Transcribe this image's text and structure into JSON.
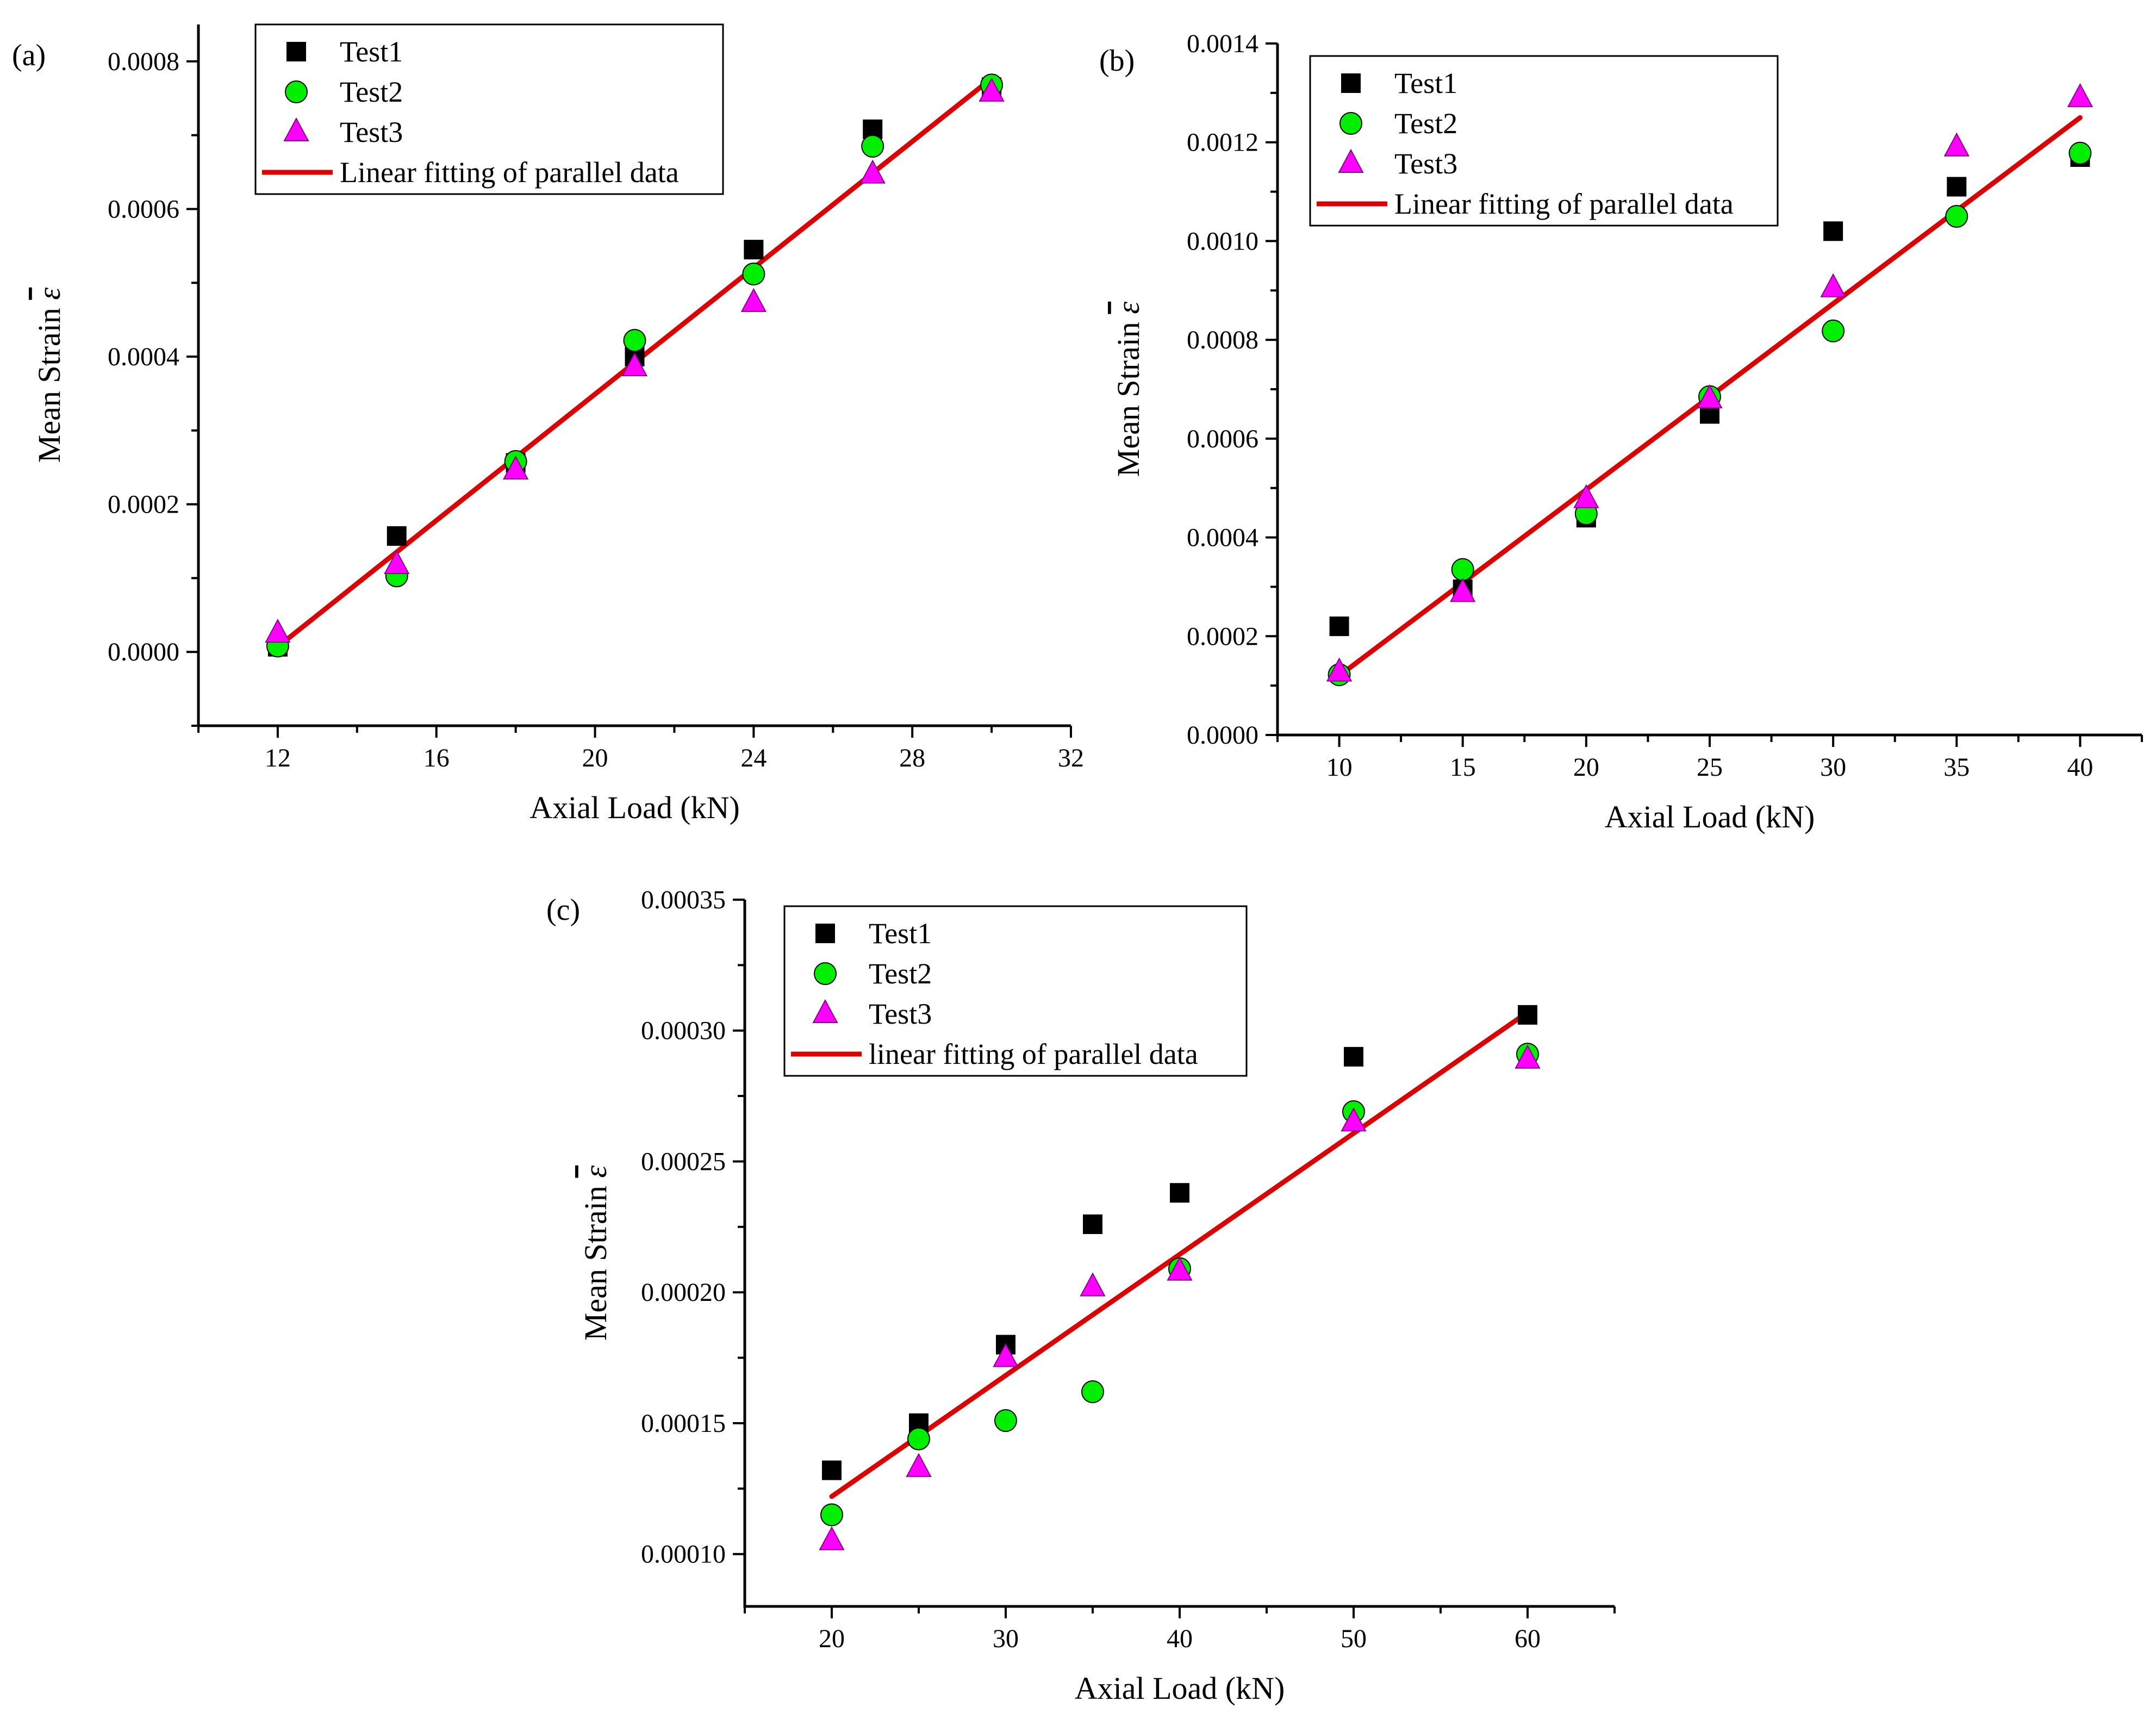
{
  "colors": {
    "test1": "#000000",
    "test2": "#00ee00",
    "test3": "#ff00ff",
    "fit": "#dd0000"
  },
  "chart_data": [
    {
      "panel": "(a)",
      "type": "scatter",
      "xlabel": "Axial Load (kN)",
      "ylabel": "Mean Strain",
      "ylabel_symbol": "ε",
      "xlim": [
        10,
        32
      ],
      "ylim": [
        -0.0001,
        0.00085
      ],
      "xticks": [
        12,
        16,
        20,
        24,
        28,
        32
      ],
      "xtick_labels": [
        "12",
        "16",
        "20",
        "24",
        "28",
        "32"
      ],
      "yticks": [
        0,
        0.0002,
        0.0004,
        0.0006,
        0.0008
      ],
      "ytick_labels": [
        "0.0000",
        "0.0002",
        "0.0004",
        "0.0006",
        "0.0008"
      ],
      "legend_position": "top-left",
      "series": [
        {
          "name": "Test1",
          "marker": "square",
          "x": [
            12,
            15,
            18,
            21,
            24,
            27,
            30
          ],
          "y": [
            7e-06,
            0.000157,
            0.000256,
            0.0004,
            0.000545,
            0.000708,
            0.000765
          ]
        },
        {
          "name": "Test2",
          "marker": "circle",
          "x": [
            12,
            15,
            18,
            21,
            24,
            27,
            30
          ],
          "y": [
            8e-06,
            0.000103,
            0.000258,
            0.000422,
            0.000512,
            0.000685,
            0.000768
          ]
        },
        {
          "name": "Test3",
          "marker": "triangle",
          "x": [
            12,
            15,
            18,
            21,
            24,
            27,
            30
          ],
          "y": [
            2.5e-05,
            0.000118,
            0.000246,
            0.000386,
            0.000473,
            0.000647,
            0.000758
          ]
        },
        {
          "name": "Linear fitting of parallel data",
          "marker": "line",
          "x": [
            12,
            30
          ],
          "y": [
            7e-06,
            0.000777
          ]
        }
      ]
    },
    {
      "panel": "(b)",
      "type": "scatter",
      "xlabel": "Axial Load (kN)",
      "ylabel": "Mean Strain",
      "ylabel_symbol": "ε",
      "xlim": [
        7.5,
        42.5
      ],
      "ylim": [
        0,
        0.0014
      ],
      "xticks": [
        10,
        15,
        20,
        25,
        30,
        35,
        40
      ],
      "xtick_labels": [
        "10",
        "15",
        "20",
        "25",
        "30",
        "35",
        "40"
      ],
      "yticks": [
        0,
        0.0002,
        0.0004,
        0.0006,
        0.0008,
        0.001,
        0.0012,
        0.0014
      ],
      "ytick_labels": [
        "0.0000",
        "0.0002",
        "0.0004",
        "0.0006",
        "0.0008",
        "0.0010",
        "0.0012",
        "0.0014"
      ],
      "legend_position": "top-left",
      "series": [
        {
          "name": "Test1",
          "marker": "square",
          "x": [
            10,
            15,
            20,
            25,
            30,
            35,
            40
          ],
          "y": [
            0.00022,
            0.000295,
            0.00044,
            0.00065,
            0.00102,
            0.00111,
            0.00117
          ]
        },
        {
          "name": "Test2",
          "marker": "circle",
          "x": [
            10,
            15,
            20,
            25,
            30,
            35,
            40
          ],
          "y": [
            0.000122,
            0.000335,
            0.000448,
            0.000685,
            0.000818,
            0.00105,
            0.001178
          ]
        },
        {
          "name": "Test3",
          "marker": "triangle",
          "x": [
            10,
            15,
            20,
            25,
            30,
            35,
            40
          ],
          "y": [
            0.000127,
            0.000288,
            0.000478,
            0.00068,
            0.000905,
            0.00119,
            0.00129
          ]
        },
        {
          "name": "Linear fitting of parallel data",
          "marker": "line",
          "x": [
            10,
            40
          ],
          "y": [
            0.00012,
            0.00125
          ]
        }
      ]
    },
    {
      "panel": "(c)",
      "type": "scatter",
      "xlabel": "Axial Load (kN)",
      "ylabel": "Mean Strain",
      "ylabel_symbol": "ε",
      "xlim": [
        15,
        65
      ],
      "ylim": [
        8e-05,
        0.00035
      ],
      "xticks": [
        20,
        30,
        40,
        50,
        60
      ],
      "xtick_labels": [
        "20",
        "30",
        "40",
        "50",
        "60"
      ],
      "yticks": [
        0.0001,
        0.00015,
        0.0002,
        0.00025,
        0.0003,
        0.00035
      ],
      "ytick_labels": [
        "0.00010",
        "0.00015",
        "0.00020",
        "0.00025",
        "0.00030",
        "0.00035"
      ],
      "legend_position": "top-left",
      "series": [
        {
          "name": "Test1",
          "marker": "square",
          "x": [
            20,
            25,
            30,
            35,
            40,
            50,
            60
          ],
          "y": [
            0.000132,
            0.00015,
            0.00018,
            0.000226,
            0.000238,
            0.00029,
            0.000306
          ]
        },
        {
          "name": "Test2",
          "marker": "circle",
          "x": [
            20,
            25,
            30,
            35,
            40,
            50,
            60
          ],
          "y": [
            0.000115,
            0.000144,
            0.000151,
            0.000162,
            0.000209,
            0.000269,
            0.000291
          ]
        },
        {
          "name": "Test3",
          "marker": "triangle",
          "x": [
            20,
            25,
            30,
            35,
            40,
            50,
            60
          ],
          "y": [
            0.000105,
            0.000133,
            0.000175,
            0.000202,
            0.000208,
            0.000265,
            0.000289
          ]
        },
        {
          "name": "linear fitting of parallel data",
          "marker": "line",
          "x": [
            20,
            60
          ],
          "y": [
            0.000122,
            0.000307
          ]
        }
      ]
    }
  ]
}
